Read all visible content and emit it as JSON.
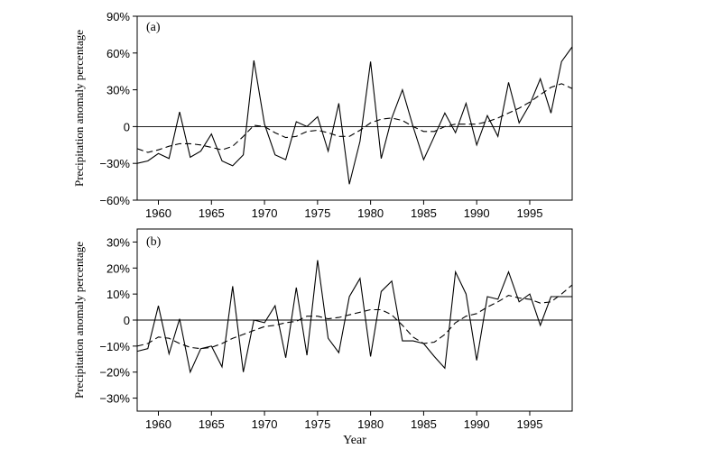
{
  "figure": {
    "xlabel": "Year"
  },
  "chart_data": [
    {
      "type": "line",
      "panel_label": "(a)",
      "ylabel": "Precipitation anomaly percentage",
      "xlim": [
        1958,
        1999
      ],
      "ylim": [
        -60,
        90
      ],
      "x_ticks": [
        1960,
        1965,
        1970,
        1975,
        1980,
        1985,
        1990,
        1995
      ],
      "y_ticks": [
        -60,
        -30,
        0,
        30,
        60,
        90
      ],
      "y_tick_labels": [
        "−60%",
        "−30%",
        "0",
        "30%",
        "60%",
        "90%"
      ],
      "zero_line": true,
      "grid": false,
      "series": [
        {
          "style": "solid",
          "x": [
            1958,
            1959,
            1960,
            1961,
            1962,
            1963,
            1964,
            1965,
            1966,
            1967,
            1968,
            1969,
            1970,
            1971,
            1972,
            1973,
            1974,
            1975,
            1976,
            1977,
            1978,
            1979,
            1980,
            1981,
            1982,
            1983,
            1984,
            1985,
            1986,
            1987,
            1988,
            1989,
            1990,
            1991,
            1992,
            1993,
            1994,
            1995,
            1996,
            1997,
            1998,
            1999
          ],
          "y": [
            -30,
            -28,
            -22,
            -26,
            12,
            -25,
            -20,
            -6,
            -28,
            -32,
            -23,
            54,
            2,
            -23,
            -27,
            4,
            0,
            8,
            -20,
            19,
            -47,
            -12,
            53,
            -26,
            7,
            30,
            0,
            -27,
            -8,
            11,
            -5,
            19,
            -15,
            9,
            -8,
            36,
            3,
            18,
            39,
            11,
            53,
            65
          ]
        },
        {
          "style": "dashed",
          "x": [
            1958,
            1959,
            1960,
            1961,
            1962,
            1963,
            1964,
            1965,
            1966,
            1967,
            1968,
            1969,
            1970,
            1971,
            1972,
            1973,
            1974,
            1975,
            1976,
            1977,
            1978,
            1979,
            1980,
            1981,
            1982,
            1983,
            1984,
            1985,
            1986,
            1987,
            1988,
            1989,
            1990,
            1991,
            1992,
            1993,
            1994,
            1995,
            1996,
            1997,
            1998,
            1999
          ],
          "y": [
            -18,
            -21,
            -19,
            -16,
            -14,
            -14,
            -15,
            -17,
            -19,
            -16,
            -8,
            1,
            0,
            -5,
            -9,
            -8,
            -4,
            -3,
            -5,
            -8,
            -8,
            -3,
            3,
            6,
            7,
            5,
            0,
            -4,
            -4,
            0,
            2,
            2,
            2,
            4,
            7,
            11,
            15,
            20,
            26,
            32,
            35,
            31
          ]
        }
      ]
    },
    {
      "type": "line",
      "panel_label": "(b)",
      "ylabel": "Precipitation anomaly percentage",
      "xlim": [
        1958,
        1999
      ],
      "ylim": [
        -35,
        35
      ],
      "x_ticks": [
        1960,
        1965,
        1970,
        1975,
        1980,
        1985,
        1990,
        1995
      ],
      "y_ticks": [
        -30,
        -20,
        -10,
        0,
        10,
        20,
        30
      ],
      "y_tick_labels": [
        "−30%",
        "−20%",
        "−10%",
        "0",
        "10%",
        "20%",
        "30%"
      ],
      "zero_line": true,
      "grid": false,
      "series": [
        {
          "style": "solid",
          "x": [
            1958,
            1959,
            1960,
            1961,
            1962,
            1963,
            1964,
            1965,
            1966,
            1967,
            1968,
            1969,
            1970,
            1971,
            1972,
            1973,
            1974,
            1975,
            1976,
            1977,
            1978,
            1979,
            1980,
            1981,
            1982,
            1983,
            1984,
            1985,
            1986,
            1987,
            1988,
            1989,
            1990,
            1991,
            1992,
            1993,
            1994,
            1995,
            1996,
            1997,
            1998,
            1999
          ],
          "y": [
            -12,
            -11,
            5.5,
            -13,
            0.5,
            -20,
            -11,
            -10,
            -18,
            13,
            -20,
            0,
            -1,
            5.5,
            -14.5,
            12.5,
            -13.5,
            23,
            -7,
            -12.5,
            9,
            16,
            -14,
            11,
            15,
            -8,
            -8,
            -9,
            -14,
            -18.5,
            18.5,
            10,
            -15.5,
            9,
            8,
            18.5,
            7,
            10,
            -2,
            9,
            9,
            9
          ]
        },
        {
          "style": "dashed",
          "x": [
            1958,
            1959,
            1960,
            1961,
            1962,
            1963,
            1964,
            1965,
            1966,
            1967,
            1968,
            1969,
            1970,
            1971,
            1972,
            1973,
            1974,
            1975,
            1976,
            1977,
            1978,
            1979,
            1980,
            1981,
            1982,
            1983,
            1984,
            1985,
            1986,
            1987,
            1988,
            1989,
            1990,
            1991,
            1992,
            1993,
            1994,
            1995,
            1996,
            1997,
            1998,
            1999
          ],
          "y": [
            -10,
            -9,
            -6.5,
            -7,
            -9,
            -10.5,
            -11,
            -10.5,
            -9,
            -7,
            -5.5,
            -4,
            -2.5,
            -2,
            -1,
            -0.5,
            1.5,
            1.5,
            0.5,
            1,
            2,
            3,
            4,
            4,
            2,
            -2,
            -6.5,
            -9,
            -8.5,
            -5.5,
            -1,
            1.5,
            2.5,
            5,
            7,
            9.5,
            8.5,
            8,
            6.5,
            7,
            10,
            13.5
          ]
        }
      ]
    }
  ]
}
